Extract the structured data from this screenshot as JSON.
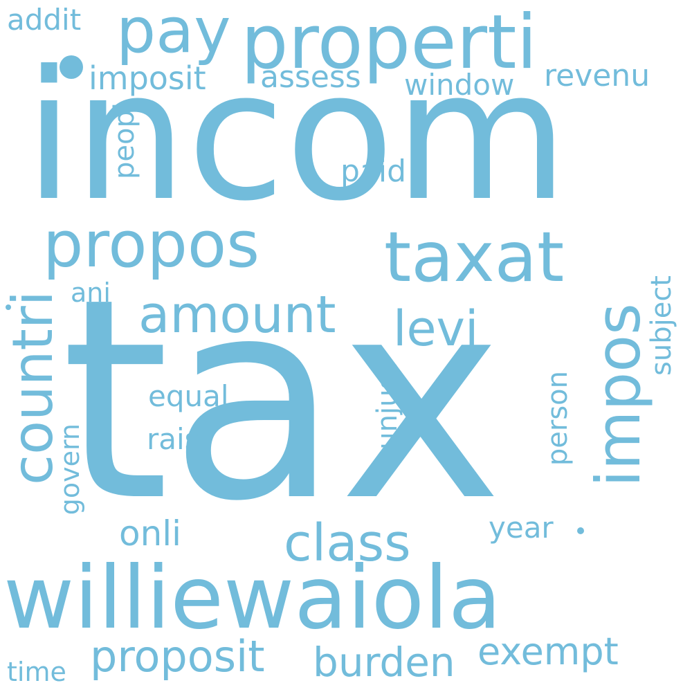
{
  "theme": {
    "background": "#ffffff",
    "word_color": "#72bcdb"
  },
  "words": {
    "tax": "tax",
    "incom": "incom",
    "williewaiola": "williewaiola",
    "properti": "properti",
    "taxat": "taxat",
    "propos": "propos",
    "impos": "impos",
    "countri": "countri",
    "amount": "amount",
    "class": "class",
    "pay": "pay",
    "levi": "levi",
    "proposit": "proposit",
    "burden": "burden",
    "exempt": "exempt",
    "imposit": "imposit",
    "assess": "assess",
    "window": "window",
    "revenu": "revenu",
    "addit": "addit",
    "paid": "paid",
    "peopl": "peopl",
    "ani": "ani",
    "equal": "equal",
    "rais": "rais",
    "onli": "onli",
    "unjust": "unjust",
    "person": "person",
    "subject": "subject",
    "year": "year",
    "govern": "govern",
    "time": "time"
  }
}
